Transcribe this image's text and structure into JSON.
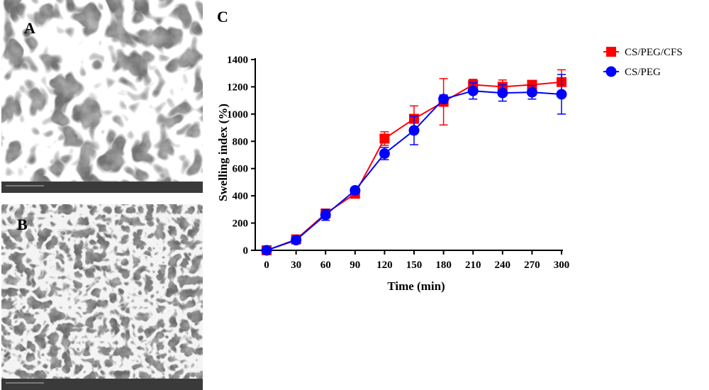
{
  "panels": {
    "a_label": "A",
    "b_label": "B",
    "c_label": "C"
  },
  "chart_data": {
    "type": "line",
    "x": [
      0,
      30,
      60,
      90,
      120,
      150,
      180,
      210,
      240,
      270,
      300
    ],
    "xlabel": "Time (min)",
    "ylabel": "Swelling index (%)",
    "xlim": [
      0,
      300
    ],
    "ylim": [
      0,
      1400
    ],
    "x_ticks": [
      0,
      30,
      60,
      90,
      120,
      150,
      180,
      210,
      240,
      270,
      300
    ],
    "y_ticks": [
      0,
      200,
      400,
      600,
      800,
      1000,
      1200,
      1400
    ],
    "grid": false,
    "legend_position": "top-right",
    "series": [
      {
        "name": "CS/PEG/CFS",
        "color": "#ff0000",
        "marker": "square",
        "values": [
          0,
          80,
          270,
          415,
          820,
          965,
          1090,
          1215,
          1200,
          1215,
          1235
        ],
        "errors": [
          10,
          10,
          30,
          15,
          50,
          95,
          170,
          40,
          50,
          25,
          90
        ]
      },
      {
        "name": "CS/PEG",
        "color": "#0000ff",
        "marker": "circle",
        "values": [
          0,
          75,
          260,
          440,
          710,
          880,
          1110,
          1170,
          1155,
          1160,
          1145
        ],
        "errors": [
          10,
          10,
          40,
          15,
          45,
          105,
          30,
          60,
          60,
          50,
          145
        ]
      }
    ]
  }
}
